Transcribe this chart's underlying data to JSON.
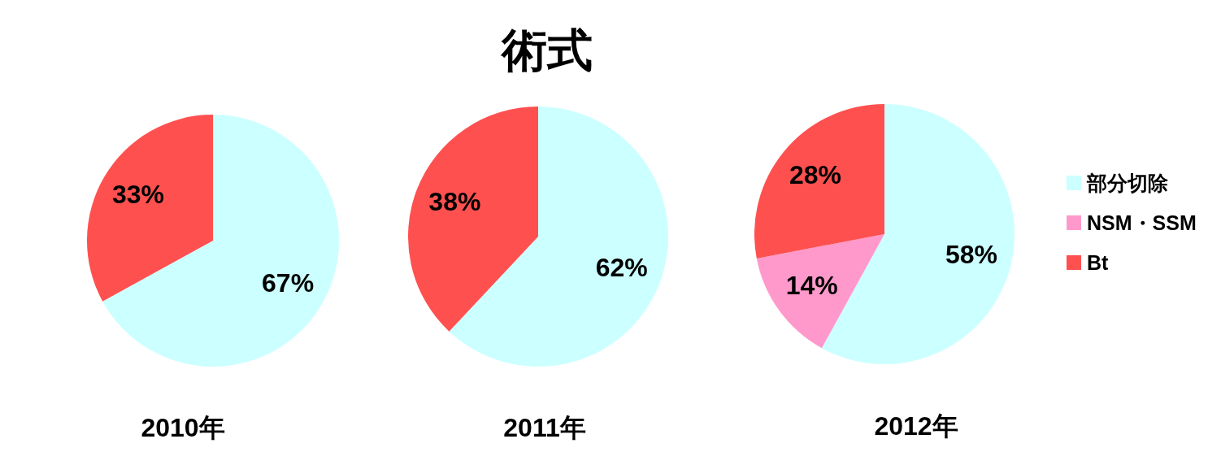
{
  "chart_data": [
    {
      "type": "other",
      "title": "術式"
    },
    {
      "type": "pie",
      "title": "2010年",
      "categories": [
        null,
        null
      ],
      "values": [
        67,
        33
      ],
      "colors": [
        "#ccffff",
        "#ff5050"
      ],
      "value_labels": [
        "67%",
        "33%"
      ]
    },
    {
      "type": "pie",
      "title": "2011年",
      "categories": [
        null,
        null
      ],
      "values": [
        62,
        38
      ],
      "colors": [
        "#ccffff",
        "#ff5050"
      ],
      "value_labels": [
        "62%",
        "38%"
      ]
    },
    {
      "type": "pie",
      "title": "2012年",
      "categories": [
        "部分切除",
        "NSM・SSM",
        "Bt"
      ],
      "values": [
        58,
        14,
        28
      ],
      "colors": [
        "#ccffff",
        "#ff99cc",
        "#ff5050"
      ],
      "value_labels": [
        "58%",
        "14%",
        "28%"
      ],
      "legend": "right"
    }
  ]
}
